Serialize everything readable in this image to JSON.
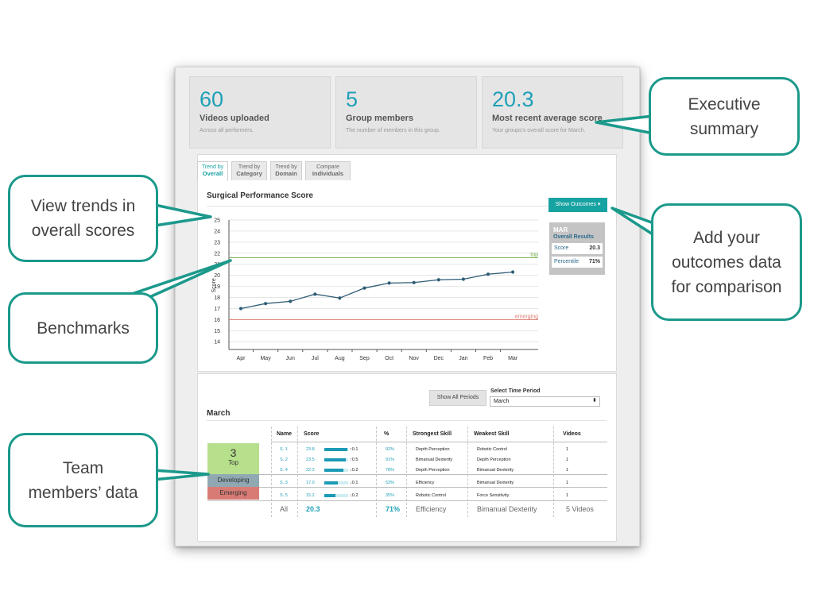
{
  "summary": [
    {
      "value": "60",
      "label": "Videos uploaded",
      "sub": "Across all performers."
    },
    {
      "value": "5",
      "label": "Group members",
      "sub": "The number of members in this group."
    },
    {
      "value": "20.3",
      "label": "Most recent average score",
      "sub": "Your groups's overall score for March."
    }
  ],
  "tabs": [
    {
      "top": "Trend by",
      "bottom": "Overall",
      "active": true
    },
    {
      "top": "Trend by",
      "bottom": "Category",
      "active": false
    },
    {
      "top": "Trend by",
      "bottom": "Domain",
      "active": false
    },
    {
      "top": "Compare",
      "bottom": "Individuals",
      "active": false
    }
  ],
  "chart_title": "Surgical Performance Score",
  "show_outcomes_label": "Show Outcomes ▾",
  "outcomes": {
    "month": "MAR",
    "title": "Overall Results",
    "score_label": "Score",
    "score_value": "20.3",
    "percentile_label": "Percentile",
    "percentile_value": "71%"
  },
  "chart_data": {
    "type": "line",
    "title": "Surgical Performance Score",
    "ylabel": "Score",
    "xlabel": "",
    "categories": [
      "Apr",
      "May",
      "Jun",
      "Jul",
      "Aug",
      "Sep",
      "Oct",
      "Nov",
      "Dec",
      "Jan",
      "Feb",
      "Mar"
    ],
    "series": [
      {
        "values": [
          17.0,
          17.45,
          17.65,
          18.3,
          17.95,
          18.85,
          19.3,
          19.35,
          19.6,
          19.65,
          20.1,
          20.3
        ],
        "color": "#2f5d75"
      }
    ],
    "benchmarks": [
      {
        "name": "top",
        "value": 21.6,
        "color": "#6fb04c"
      },
      {
        "name": "emerging",
        "value": 16.0,
        "color": "#e07c72"
      }
    ],
    "yticks": [
      14,
      15,
      16,
      17,
      18,
      19,
      20,
      21,
      22,
      23,
      24,
      25
    ],
    "ylim": [
      13.3,
      25
    ],
    "grid": true
  },
  "table": {
    "show_all_periods": "Show All Periods",
    "select_label": "Select Time Period",
    "select_value": "March",
    "month_heading": "March",
    "headers": {
      "name": "Name",
      "score": "Score",
      "pct": "%",
      "strong": "Strongest Skill",
      "weak": "Weakest Skill",
      "videos": "Videos"
    },
    "tiers": {
      "top_count": "3",
      "top_label": "Top",
      "developing": "Developing",
      "emerging": "Emerging"
    },
    "rows": [
      {
        "name": "S. 1",
        "score": "23.8",
        "bar": 0.95,
        "change": "↑0.1",
        "pct": "92%",
        "strong": "Depth Perception",
        "weak": "Robotic Control",
        "videos": "1"
      },
      {
        "name": "S. 2",
        "score": "23.5",
        "bar": 0.9,
        "change": "↑0.5",
        "pct": "91%",
        "strong": "Bimanual Dexterity",
        "weak": "Depth Perception",
        "videos": "1"
      },
      {
        "name": "S. 4",
        "score": "22.2",
        "bar": 0.8,
        "change": "↓0.2",
        "pct": "78%",
        "strong": "Depth Perception",
        "weak": "Bimanual Dexterity",
        "videos": "1"
      },
      {
        "name": "S. 3",
        "score": "17.0",
        "bar": 0.55,
        "change": "↓0.1",
        "pct": "53%",
        "strong": "Efficiency",
        "weak": "Bimanual Dexterity",
        "videos": "1"
      },
      {
        "name": "S. 5",
        "score": "15.2",
        "bar": 0.45,
        "change": "↓0.2",
        "pct": "35%",
        "strong": "Robotic Control",
        "weak": "Force Sensitivity",
        "videos": "1"
      }
    ],
    "totals": {
      "name": "All",
      "score": "20.3",
      "pct": "71%",
      "strong": "Efficiency",
      "weak": "Bimanual Dexterity",
      "videos": "5 Videos"
    }
  },
  "callouts": {
    "exec": "Executive\nsummary",
    "trends": "View trends in\noverall scores",
    "outcomes": "Add your\noutcomes data\nfor comparison",
    "bench": "Benchmarks",
    "team": "Team\nmembers’ data"
  },
  "colors": {
    "accent": "#17a2a2",
    "callout_border": "#1b998b"
  }
}
